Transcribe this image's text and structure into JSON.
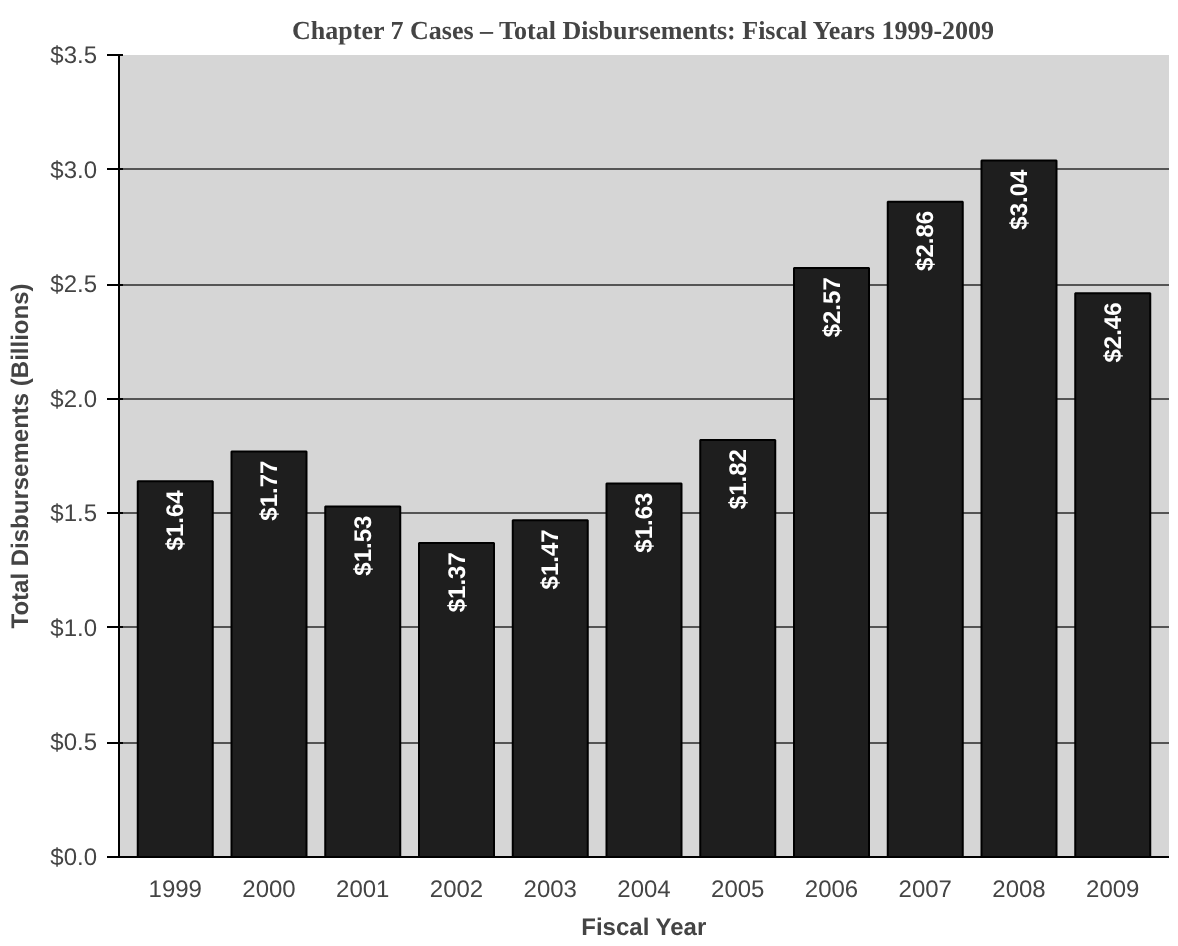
{
  "chart_data": {
    "type": "bar",
    "title": "Chapter 7 Cases – Total Disbursements: Fiscal Years 1999-2009",
    "xlabel": "Fiscal Year",
    "ylabel": "Total Disbursements (Billions)",
    "categories": [
      "1999",
      "2000",
      "2001",
      "2002",
      "2003",
      "2004",
      "2005",
      "2006",
      "2007",
      "2008",
      "2009"
    ],
    "values": [
      1.64,
      1.77,
      1.53,
      1.37,
      1.47,
      1.63,
      1.82,
      2.57,
      2.86,
      3.04,
      2.46
    ],
    "value_labels": [
      "$1.64",
      "$1.77",
      "$1.53",
      "$1.37",
      "$1.47",
      "$1.63",
      "$1.82",
      "$2.57",
      "$2.86",
      "$3.04",
      "$2.46"
    ],
    "color": "#1e1e1e",
    "ylim": [
      0,
      3.5
    ],
    "yticks": [
      {
        "value": 0,
        "label": "$0.0"
      },
      {
        "value": 0.5,
        "label": "$0.5"
      },
      {
        "value": 1.0,
        "label": "$1.0"
      },
      {
        "value": 1.5,
        "label": "$1.5"
      },
      {
        "value": 2.0,
        "label": "$2.0"
      },
      {
        "value": 2.5,
        "label": "$2.5"
      },
      {
        "value": 3.0,
        "label": "$3.0"
      },
      {
        "value": 3.5,
        "label": "$3.5"
      }
    ],
    "grid": "y"
  }
}
